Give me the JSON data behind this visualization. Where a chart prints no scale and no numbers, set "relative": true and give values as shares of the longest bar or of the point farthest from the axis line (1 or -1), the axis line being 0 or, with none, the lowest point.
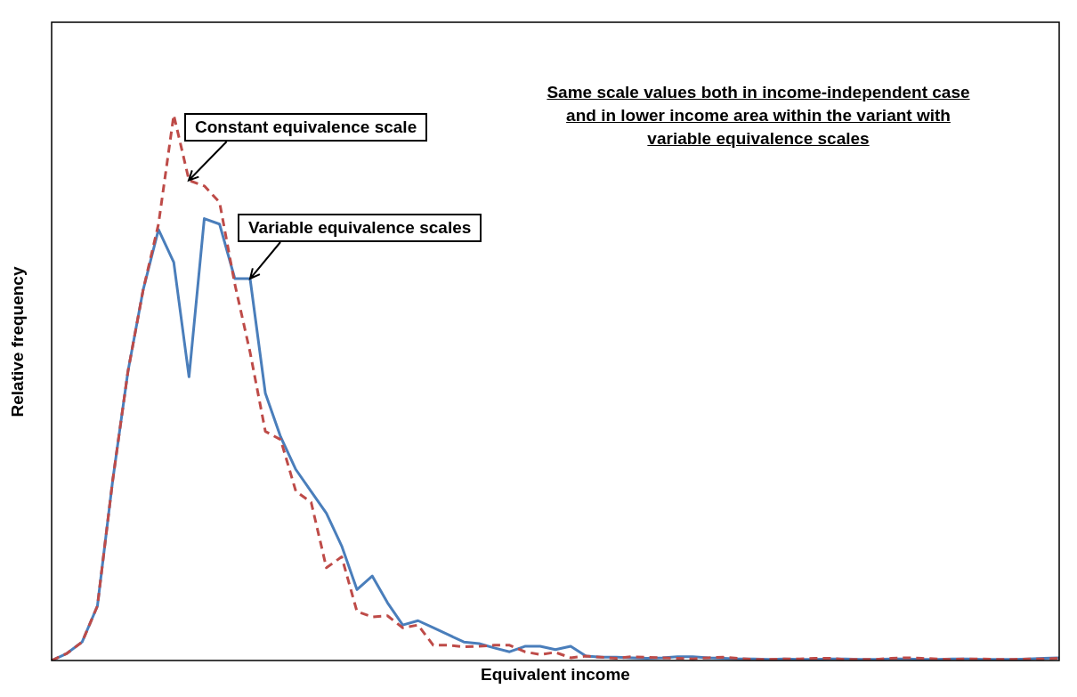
{
  "chart_data": {
    "type": "line",
    "relative": true,
    "xlabel": "Equivalent income",
    "ylabel": "Relative frequency",
    "annotations": [
      "Same scale values both in income-independent case and in lower income area within the variant with variable equivalence scales"
    ],
    "categories": [
      null,
      null,
      null,
      null,
      null,
      null,
      null,
      null,
      null,
      null,
      null,
      null,
      null,
      null,
      null,
      null,
      null,
      null,
      null,
      null,
      null,
      null,
      null,
      null,
      null,
      null,
      null,
      null,
      null,
      null,
      null,
      null,
      null,
      null,
      null,
      null,
      null,
      null,
      null,
      null,
      null,
      null,
      null,
      null,
      null,
      null,
      null,
      null,
      null,
      null,
      null,
      null,
      null,
      null,
      null,
      null,
      null,
      null,
      null,
      null,
      null,
      null,
      null,
      null,
      null,
      null,
      null
    ],
    "series": [
      {
        "name": "Variable equivalence scales",
        "color": "#4a7ebb",
        "line_style": "solid",
        "values": [
          0,
          0.013,
          0.034,
          0.1,
          0.33,
          0.53,
          0.68,
          0.79,
          0.73,
          0.52,
          0.81,
          0.8,
          0.7,
          0.7,
          0.49,
          0.41,
          0.35,
          0.31,
          0.27,
          0.21,
          0.13,
          0.155,
          0.106,
          0.065,
          0.073,
          0.06,
          0.047,
          0.034,
          0.031,
          0.023,
          0.016,
          0.026,
          0.026,
          0.02,
          0.026,
          0.008,
          0.006,
          0.006,
          0.005,
          0.004,
          0.005,
          0.007,
          0.007,
          0.005,
          0.004,
          0.003,
          0.003,
          0.002,
          0.003,
          0.002,
          0.002,
          0.003,
          0.003,
          0.002,
          0.002,
          0.003,
          0.003,
          0.002,
          0.002,
          0.003,
          0.003,
          0.002,
          0.002,
          0.002,
          0.003,
          0.004,
          0.005
        ]
      },
      {
        "name": "Constant equivalence scale",
        "color": "#be4b48",
        "line_style": "dashed",
        "values": [
          0,
          0.013,
          0.034,
          0.1,
          0.33,
          0.53,
          0.68,
          0.8,
          1,
          0.88,
          0.87,
          0.84,
          0.69,
          0.565,
          0.42,
          0.405,
          0.31,
          0.29,
          0.17,
          0.19,
          0.09,
          0.08,
          0.082,
          0.06,
          0.065,
          0.028,
          0.028,
          0.025,
          0.026,
          0.028,
          0.028,
          0.016,
          0.011,
          0.015,
          0.005,
          0.008,
          0.006,
          0.004,
          0.007,
          0.006,
          0.005,
          0.004,
          0.003,
          0.005,
          0.006,
          0.004,
          0.002,
          0.002,
          0.003,
          0.003,
          0.004,
          0.004,
          0.002,
          0.002,
          0.002,
          0.004,
          0.005,
          0.004,
          0.003,
          0.002,
          0.003,
          0.003,
          0.002,
          0.002,
          0.003,
          0.003,
          0.004
        ]
      }
    ],
    "marker": "none",
    "legend": false,
    "tick_labels": false
  }
}
